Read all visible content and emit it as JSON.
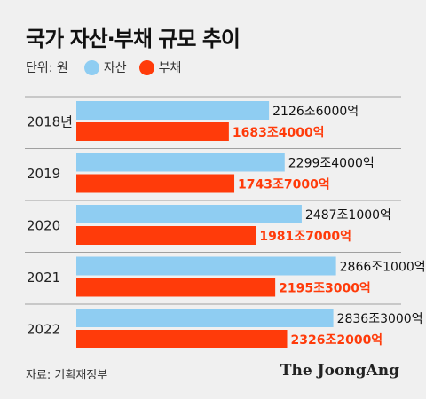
{
  "title": "국가 자산·부채 규모 추이",
  "legend": {
    "unit": "단위: 원",
    "items": [
      {
        "label": "자산",
        "color": "#8fcdf2"
      },
      {
        "label": "부채",
        "color": "#ff3b0a"
      }
    ]
  },
  "chart_data": {
    "type": "bar",
    "orientation": "horizontal",
    "categories": [
      "2018년",
      "2019",
      "2020",
      "2021",
      "2022"
    ],
    "series": [
      {
        "name": "자산",
        "color": "#8fcdf2",
        "values": [
          2126.6,
          2299.4,
          2487.1,
          2866.1,
          2836.3
        ],
        "labels": [
          "2126조6000억",
          "2299조4000억",
          "2487조1000억",
          "2866조1000억",
          "2836조3000억"
        ]
      },
      {
        "name": "부채",
        "color": "#ff3b0a",
        "values": [
          1683.4,
          1743.7,
          1981.7,
          2195.3,
          2326.2
        ],
        "labels": [
          "1683조4000억",
          "1743조7000억",
          "1981조7000억",
          "2195조3000억",
          "2326조2000억"
        ]
      }
    ],
    "grid": "horizontal separators"
  },
  "source": "자료: 기획재정부",
  "brand": "The JoongAng"
}
